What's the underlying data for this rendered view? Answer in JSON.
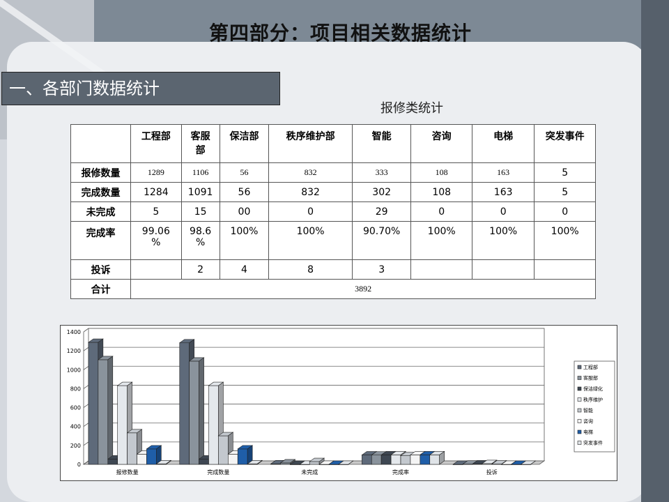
{
  "slide": {
    "title": "第四部分：项目相关数据统计",
    "section_label": "一、各部门数据统计",
    "subtitle": "报修类统计"
  },
  "table": {
    "columns": [
      "工程部",
      "客服部",
      "保洁部",
      "秩序维护部",
      "智能",
      "咨询",
      "电梯",
      "突发事件"
    ],
    "column_lines": [
      [
        "工程部"
      ],
      [
        "客服",
        "部"
      ],
      [
        "保洁部"
      ],
      [
        "秩序维护部"
      ],
      [
        "智能"
      ],
      [
        "咨询"
      ],
      [
        "电梯"
      ],
      [
        "突发事件"
      ]
    ],
    "rows": [
      {
        "label": "报修数量",
        "cells": [
          [
            "1289"
          ],
          [
            "1106"
          ],
          [
            "56"
          ],
          [
            "832"
          ],
          [
            "333"
          ],
          [
            "108"
          ],
          [
            "163"
          ],
          [
            "5"
          ]
        ]
      },
      {
        "label": "完成数量",
        "cells": [
          [
            "1284"
          ],
          [
            "1091"
          ],
          [
            "56"
          ],
          [
            "832"
          ],
          [
            "302"
          ],
          [
            "108"
          ],
          [
            "163"
          ],
          [
            "5"
          ]
        ]
      },
      {
        "label": "未完成",
        "cells": [
          [
            "5"
          ],
          [
            "15"
          ],
          [
            "00"
          ],
          [
            "0"
          ],
          [
            "29"
          ],
          [
            "0"
          ],
          [
            "0"
          ],
          [
            "0"
          ]
        ]
      },
      {
        "label": "完成率",
        "cells": [
          [
            "99.06",
            "%"
          ],
          [
            "98.6",
            "%"
          ],
          [
            "100%"
          ],
          [
            "100%"
          ],
          [
            "90.70%"
          ],
          [
            "100%"
          ],
          [
            "100%"
          ],
          [
            "100%"
          ]
        ]
      },
      {
        "label": "投诉",
        "cells": [
          [
            ""
          ],
          [
            "2"
          ],
          [
            "4"
          ],
          [
            "8"
          ],
          [
            "3"
          ],
          [
            ""
          ],
          [
            ""
          ],
          [
            ""
          ]
        ]
      }
    ],
    "total_label": "合计",
    "total_value": "3892"
  },
  "chart_data": {
    "type": "bar",
    "style": "3d clustered column",
    "categories": [
      "报修数量",
      "完成数量",
      "未完成",
      "完成率",
      "投诉"
    ],
    "ylim": [
      0,
      1400
    ],
    "yticks": [
      "0",
      "200",
      "400",
      "600",
      "800",
      "1000",
      "1200",
      "1400"
    ],
    "grid": true,
    "legend_position": "right",
    "series": [
      {
        "name": "工程部",
        "color": "#5e6a7a",
        "values": [
          1289,
          1284,
          5,
          99.06,
          0
        ]
      },
      {
        "name": "客服部",
        "color": "#8a939c",
        "values": [
          1106,
          1091,
          15,
          98.6,
          2
        ]
      },
      {
        "name": "保洁绿化",
        "color": "#3e4752",
        "values": [
          56,
          56,
          0,
          100,
          4
        ]
      },
      {
        "name": "秩序维护",
        "color": "#e4e8ec",
        "values": [
          832,
          832,
          0,
          100,
          8
        ]
      },
      {
        "name": "智能",
        "color": "#c3c8ce",
        "values": [
          333,
          302,
          29,
          90.7,
          3
        ]
      },
      {
        "name": "咨询",
        "color": "#f4f4f4",
        "values": [
          108,
          108,
          0,
          100,
          0
        ]
      },
      {
        "name": "电梯",
        "color": "#1f5ea8",
        "values": [
          163,
          163,
          0,
          100,
          0
        ]
      },
      {
        "name": "突发事件",
        "color": "#dfe3e7",
        "values": [
          5,
          5,
          0,
          100,
          0
        ]
      }
    ]
  }
}
